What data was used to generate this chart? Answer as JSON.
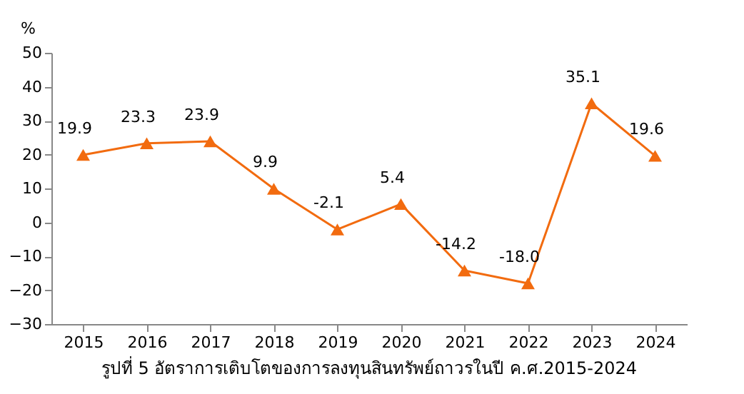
{
  "chart_data": {
    "type": "line",
    "title": "รูปที่ 5 อัตราการเติบโตของการลงทุนสินทรัพย์ถาวรในปี ค.ศ.2015-2024",
    "ylabel": "%",
    "categories": [
      "2015",
      "2016",
      "2017",
      "2018",
      "2019",
      "2020",
      "2021",
      "2022",
      "2023",
      "2024"
    ],
    "series": [
      {
        "color": "#f26b0f",
        "values": [
          19.9,
          23.3,
          23.9,
          9.9,
          -2.1,
          5.4,
          -14.2,
          -18.0,
          35.1,
          19.6
        ],
        "value_labels": [
          "19.9",
          "23.3",
          "23.9",
          "9.9",
          "-2.1",
          "5.4",
          "-14.2",
          "-18.0",
          "35.1",
          "19.6"
        ]
      }
    ],
    "ylim": [
      -30,
      50
    ],
    "yticks": [
      -30,
      -20,
      -10,
      0,
      10,
      20,
      30,
      40,
      50
    ],
    "grid": false,
    "legend": false,
    "marker": "triangle",
    "line_style": "solid"
  }
}
